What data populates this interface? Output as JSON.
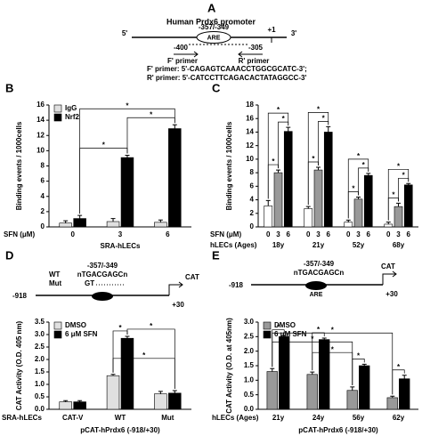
{
  "promoter_diagram": {
    "panel": "A",
    "title": "Human Prdx6 promoter",
    "five_prime": "5'",
    "site": "-357/-349",
    "element": "ARE",
    "tss": "+1",
    "three_prime": "3'",
    "f_pos": "-400",
    "r_pos": "-305",
    "f_label": "F' primer",
    "r_label": "R' primer",
    "f_seq": "F' primer: 5'-CAGAGTCAAACCTGGCGCATC-3';",
    "r_seq": "R' primer: 5'-CATCCTTCAGACACTATAGGCC-3'"
  },
  "construct_d": {
    "start": "-918",
    "wt": "WT",
    "mut": "Mut",
    "site": "-357/-349",
    "seq": "nTGACGAGCn",
    "mut_seq": "GT",
    "reporter": "CAT",
    "end": "+30"
  },
  "construct_e": {
    "start": "-918",
    "site": "-357/-349",
    "seq": "nTGACGAGCn",
    "element": "ARE",
    "reporter": "CAT",
    "end": "+30"
  },
  "chart_data": [
    {
      "type": "bar",
      "panel": "B",
      "ylabel": "Binding events / 1000cells",
      "ylim": [
        0,
        16
      ],
      "yticks": [
        0,
        2,
        4,
        6,
        8,
        10,
        12,
        14,
        16
      ],
      "categories": [
        "0",
        "3",
        "6"
      ],
      "row_label": "SFN (μM)",
      "footer": "SRA-hLECs",
      "legend": "upper-left",
      "significance": "*",
      "series": [
        {
          "name": "IgG",
          "color": "#e0e0e0",
          "values": [
            0.5,
            0.7,
            0.6
          ],
          "errors": [
            0.3,
            0.4,
            0.3
          ]
        },
        {
          "name": "Nrf2",
          "color": "#000000",
          "values": [
            1.1,
            9.1,
            12.9
          ],
          "errors": [
            0.4,
            0.3,
            0.5
          ]
        }
      ]
    },
    {
      "type": "bar",
      "panel": "C",
      "ylabel": "Binding events / 1000cells",
      "ylim": [
        0,
        18
      ],
      "yticks": [
        0,
        2,
        4,
        6,
        8,
        10,
        12,
        14,
        16,
        18
      ],
      "categories": [
        "0",
        "3",
        "6",
        "0",
        "3",
        "6",
        "0",
        "3",
        "6",
        "0",
        "3",
        "6"
      ],
      "row_label": "SFN (μM)",
      "groups": [
        "18y",
        "21y",
        "52y",
        "68y"
      ],
      "groups_label": "hLECs (Ages)",
      "significance": "*",
      "series": [
        {
          "colors": [
            "#ffffff",
            "#999999",
            "#000000",
            "#ffffff",
            "#999999",
            "#000000",
            "#ffffff",
            "#999999",
            "#000000",
            "#ffffff",
            "#999999",
            "#000000"
          ],
          "values": [
            3.1,
            8.0,
            14.1,
            2.7,
            8.4,
            14.0,
            0.7,
            4.1,
            7.6,
            0.4,
            3.0,
            6.2
          ],
          "errors": [
            0.8,
            0.4,
            0.6,
            0.3,
            0.4,
            0.8,
            0.3,
            0.3,
            0.3,
            0.3,
            0.5,
            0.2
          ]
        }
      ]
    },
    {
      "type": "bar",
      "panel": "D",
      "ylabel": "CAT Activity (O.D. 405 nm)",
      "ylim": [
        0,
        3.5
      ],
      "yticks": [
        {
          "value": 0,
          "label": "0.0"
        },
        0.5,
        {
          "value": 1,
          "label": "1.0"
        },
        1.5,
        {
          "value": 2,
          "label": "2.0"
        },
        2.5,
        {
          "value": 3,
          "label": "3.0"
        },
        3.5
      ],
      "categories": [
        "CAT-V",
        "WT",
        "Mut"
      ],
      "row_label": "SRA-hLECs",
      "footer": "pCAT-hPrdx6 (-918/+30)",
      "legend": "upper-left",
      "significance": "*",
      "series": [
        {
          "name": "DMSO",
          "color": "#e0e0e0",
          "values": [
            0.3,
            1.35,
            0.62
          ],
          "errors": [
            0.05,
            0.05,
            0.1
          ]
        },
        {
          "name": "6 μM SFN",
          "color": "#000000",
          "values": [
            0.3,
            2.85,
            0.65
          ],
          "errors": [
            0.05,
            0.08,
            0.1
          ]
        }
      ]
    },
    {
      "type": "bar",
      "panel": "E",
      "ylabel": "CAT Activity (O.D. at 405nm)",
      "ylim": [
        0,
        3
      ],
      "yticks": [
        {
          "value": 0,
          "label": "0.0"
        },
        0.5,
        {
          "value": 1,
          "label": "1.0"
        },
        1.5,
        {
          "value": 2,
          "label": "2.0"
        },
        2.5,
        {
          "value": 3,
          "label": "3.0"
        }
      ],
      "categories": [
        "21y",
        "24y",
        "56y",
        "62y"
      ],
      "row_label": "hLECs (Ages)",
      "footer": "pCAT-hPrdx6 (-918/+30)",
      "legend": "upper-left",
      "significance": "*",
      "series": [
        {
          "name": "DMSO",
          "color": "#999999",
          "values": [
            1.3,
            1.2,
            0.65,
            0.4
          ],
          "errors": [
            0.1,
            0.08,
            0.12,
            0.05
          ]
        },
        {
          "name": "6 μM SFN",
          "color": "#000000",
          "values": [
            2.5,
            2.4,
            1.5,
            1.05
          ],
          "errors": [
            0.05,
            0.05,
            0.05,
            0.12
          ]
        }
      ]
    }
  ]
}
